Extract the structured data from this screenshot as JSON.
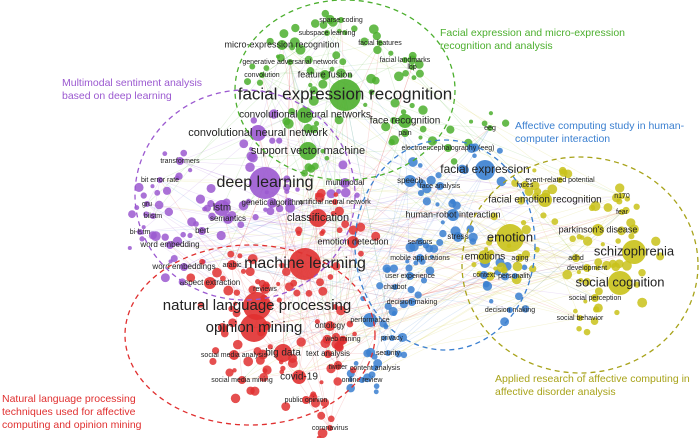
{
  "clusters": [
    {
      "label": "Facial expression and micro-expression recognition and analysis",
      "color": "#4caf2e",
      "nodes": [
        {
          "label": "sparse coding"
        },
        {
          "label": "subspace learning"
        },
        {
          "label": "micro-expression recognition"
        },
        {
          "label": "facial features"
        },
        {
          "label": "generative adversarial network"
        },
        {
          "label": "facial landmarks"
        },
        {
          "label": "convolution"
        },
        {
          "label": "feature fusion"
        },
        {
          "label": "lbp"
        },
        {
          "label": "facial expression recognition"
        },
        {
          "label": "convolutional neural networks"
        },
        {
          "label": "face recognition"
        },
        {
          "label": "support vector machine"
        },
        {
          "label": "pain"
        },
        {
          "label": "electroencephalography (eeg)"
        },
        {
          "label": "eeg"
        }
      ]
    },
    {
      "label": "Multimodal sentiment analysis based on deep learning",
      "color": "#9b59d0",
      "nodes": [
        {
          "label": "convolutional neural network"
        },
        {
          "label": "transformers"
        },
        {
          "label": "bit error rate"
        },
        {
          "label": "deep learning"
        },
        {
          "label": "gru"
        },
        {
          "label": "bilstm"
        },
        {
          "label": "lstm"
        },
        {
          "label": "genetic algorithm"
        },
        {
          "label": "semantics"
        },
        {
          "label": "bi-lstm"
        },
        {
          "label": "bert"
        },
        {
          "label": "word embedding"
        },
        {
          "label": "word embeddings"
        },
        {
          "label": "multimodal"
        }
      ]
    },
    {
      "label": "Affective computing study in human-computer interaction",
      "color": "#3a7fd0",
      "nodes": [
        {
          "label": "speech"
        },
        {
          "label": "facial expression"
        },
        {
          "label": "face analysis"
        },
        {
          "label": "human-robot interaction"
        },
        {
          "label": "sensors"
        },
        {
          "label": "mobile applications"
        },
        {
          "label": "user experience"
        },
        {
          "label": "chatbot"
        },
        {
          "label": "decision-making"
        },
        {
          "label": "performance"
        },
        {
          "label": "privacy"
        },
        {
          "label": "security"
        },
        {
          "label": "content analysis"
        },
        {
          "label": "online review"
        },
        {
          "label": "stress"
        },
        {
          "label": "context"
        },
        {
          "label": "personality"
        },
        {
          "label": "decision making"
        }
      ]
    },
    {
      "label": "Applied research of affective computing in affective disorder analysis",
      "color": "#c9c21a",
      "nodes": [
        {
          "label": "event-related potential"
        },
        {
          "label": "faces"
        },
        {
          "label": "facial emotion recognition"
        },
        {
          "label": "n170"
        },
        {
          "label": "fear"
        },
        {
          "label": "emotion"
        },
        {
          "label": "parkinson's disease"
        },
        {
          "label": "schizophrenia"
        },
        {
          "label": "emotions"
        },
        {
          "label": "aging"
        },
        {
          "label": "adhd"
        },
        {
          "label": "development"
        },
        {
          "label": "social cognition"
        },
        {
          "label": "social perception"
        },
        {
          "label": "social behavior"
        }
      ]
    },
    {
      "label": "Natural language processing techniques used for affective computing and opinion mining",
      "color": "#e03030",
      "nodes": [
        {
          "label": "classification"
        },
        {
          "label": "artificial neural network"
        },
        {
          "label": "emotion detection"
        },
        {
          "label": "arabic"
        },
        {
          "label": "machine learning"
        },
        {
          "label": "aspect extraction"
        },
        {
          "label": "reviews"
        },
        {
          "label": "natural language processing"
        },
        {
          "label": "opinion mining"
        },
        {
          "label": "ontology"
        },
        {
          "label": "web mining"
        },
        {
          "label": "big data"
        },
        {
          "label": "text analysis"
        },
        {
          "label": "social media analysis"
        },
        {
          "label": "covid-19"
        },
        {
          "label": "twitter"
        },
        {
          "label": "social media mining"
        },
        {
          "label": "public opinion"
        },
        {
          "label": "coronavirus"
        }
      ]
    }
  ]
}
